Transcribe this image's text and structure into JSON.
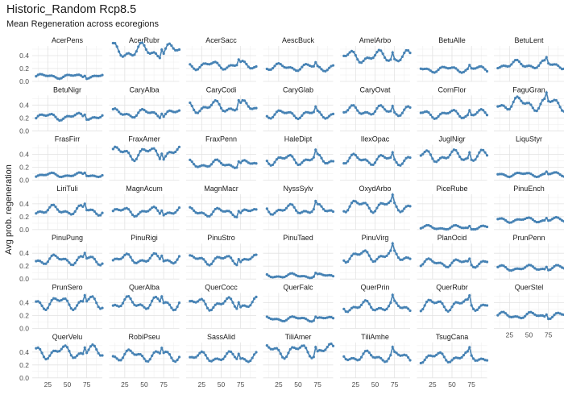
{
  "chart_data": {
    "type": "line",
    "title": "Historic_Random Rcp8.5",
    "subtitle": "Mean Regeneration across ecoregions",
    "xlabel": "",
    "ylabel": "Avg prob. regeneration",
    "ylim": [
      0,
      0.55
    ],
    "xlim": [
      5,
      95
    ],
    "yticks": [
      0.0,
      0.2,
      0.4
    ],
    "ytick_labels": [
      "0.0",
      "0.2",
      "0.4"
    ],
    "xticks": [
      25,
      50,
      75
    ],
    "xtick_labels": [
      "25",
      "50",
      "75"
    ],
    "x_start": 10,
    "x_end": 95,
    "x_step": 2.5,
    "grid": true,
    "line_color": "#4682B4",
    "facets": [
      {
        "name": "AcerPens",
        "level": 0.08
      },
      {
        "name": "AcerRubr",
        "level": 0.47
      },
      {
        "name": "AcerSacc",
        "level": 0.25
      },
      {
        "name": "AescBuck",
        "level": 0.22
      },
      {
        "name": "AmelArbo",
        "level": 0.38
      },
      {
        "name": "BetuAlle",
        "level": 0.19
      },
      {
        "name": "BetuLent",
        "level": 0.26
      },
      {
        "name": "BetuNigr",
        "level": 0.22
      },
      {
        "name": "CaryAlba",
        "level": 0.27
      },
      {
        "name": "CaryCodi",
        "level": 0.37
      },
      {
        "name": "CaryGlab",
        "level": 0.26
      },
      {
        "name": "CaryOvat",
        "level": 0.31
      },
      {
        "name": "CornFlor",
        "level": 0.26
      },
      {
        "name": "FaguGran",
        "level": 0.42
      },
      {
        "name": "FrasFirr",
        "level": 0.08
      },
      {
        "name": "FraxAmer",
        "level": 0.42
      },
      {
        "name": "FraxPenn",
        "level": 0.25
      },
      {
        "name": "HaleDipt",
        "level": 0.32
      },
      {
        "name": "IlexOpac",
        "level": 0.32
      },
      {
        "name": "JuglNigr",
        "level": 0.37
      },
      {
        "name": "LiquStyr",
        "level": 0.09
      },
      {
        "name": "LiriTuli",
        "level": 0.3
      },
      {
        "name": "MagnAcum",
        "level": 0.28
      },
      {
        "name": "MagnMacr",
        "level": 0.27
      },
      {
        "name": "NyssSylv",
        "level": 0.31
      },
      {
        "name": "OxydArbo",
        "level": 0.37
      },
      {
        "name": "PiceRube",
        "level": 0.03
      },
      {
        "name": "PinuEnch",
        "level": 0.15
      },
      {
        "name": "PinuPung",
        "level": 0.3
      },
      {
        "name": "PinuRigi",
        "level": 0.31
      },
      {
        "name": "PinuStro",
        "level": 0.3
      },
      {
        "name": "PinuTaed",
        "level": 0.05
      },
      {
        "name": "PinuVirg",
        "level": 0.36
      },
      {
        "name": "PlanOcid",
        "level": 0.25
      },
      {
        "name": "PrunPenn",
        "level": 0.17
      },
      {
        "name": "PrunSero",
        "level": 0.4
      },
      {
        "name": "QuerAlba",
        "level": 0.39
      },
      {
        "name": "QuerCocc",
        "level": 0.38
      },
      {
        "name": "QuerFalc",
        "level": 0.15
      },
      {
        "name": "QuerPrin",
        "level": 0.34
      },
      {
        "name": "QuerRubr",
        "level": 0.37
      },
      {
        "name": "QuerStel",
        "level": 0.2
      },
      {
        "name": "QuerVelu",
        "level": 0.4
      },
      {
        "name": "RobiPseu",
        "level": 0.35
      },
      {
        "name": "SassAlid",
        "level": 0.32
      },
      {
        "name": "TiliAmer",
        "level": 0.42
      },
      {
        "name": "TiliAmhe",
        "level": 0.33
      },
      {
        "name": "TsugCana",
        "level": 0.32
      }
    ]
  }
}
